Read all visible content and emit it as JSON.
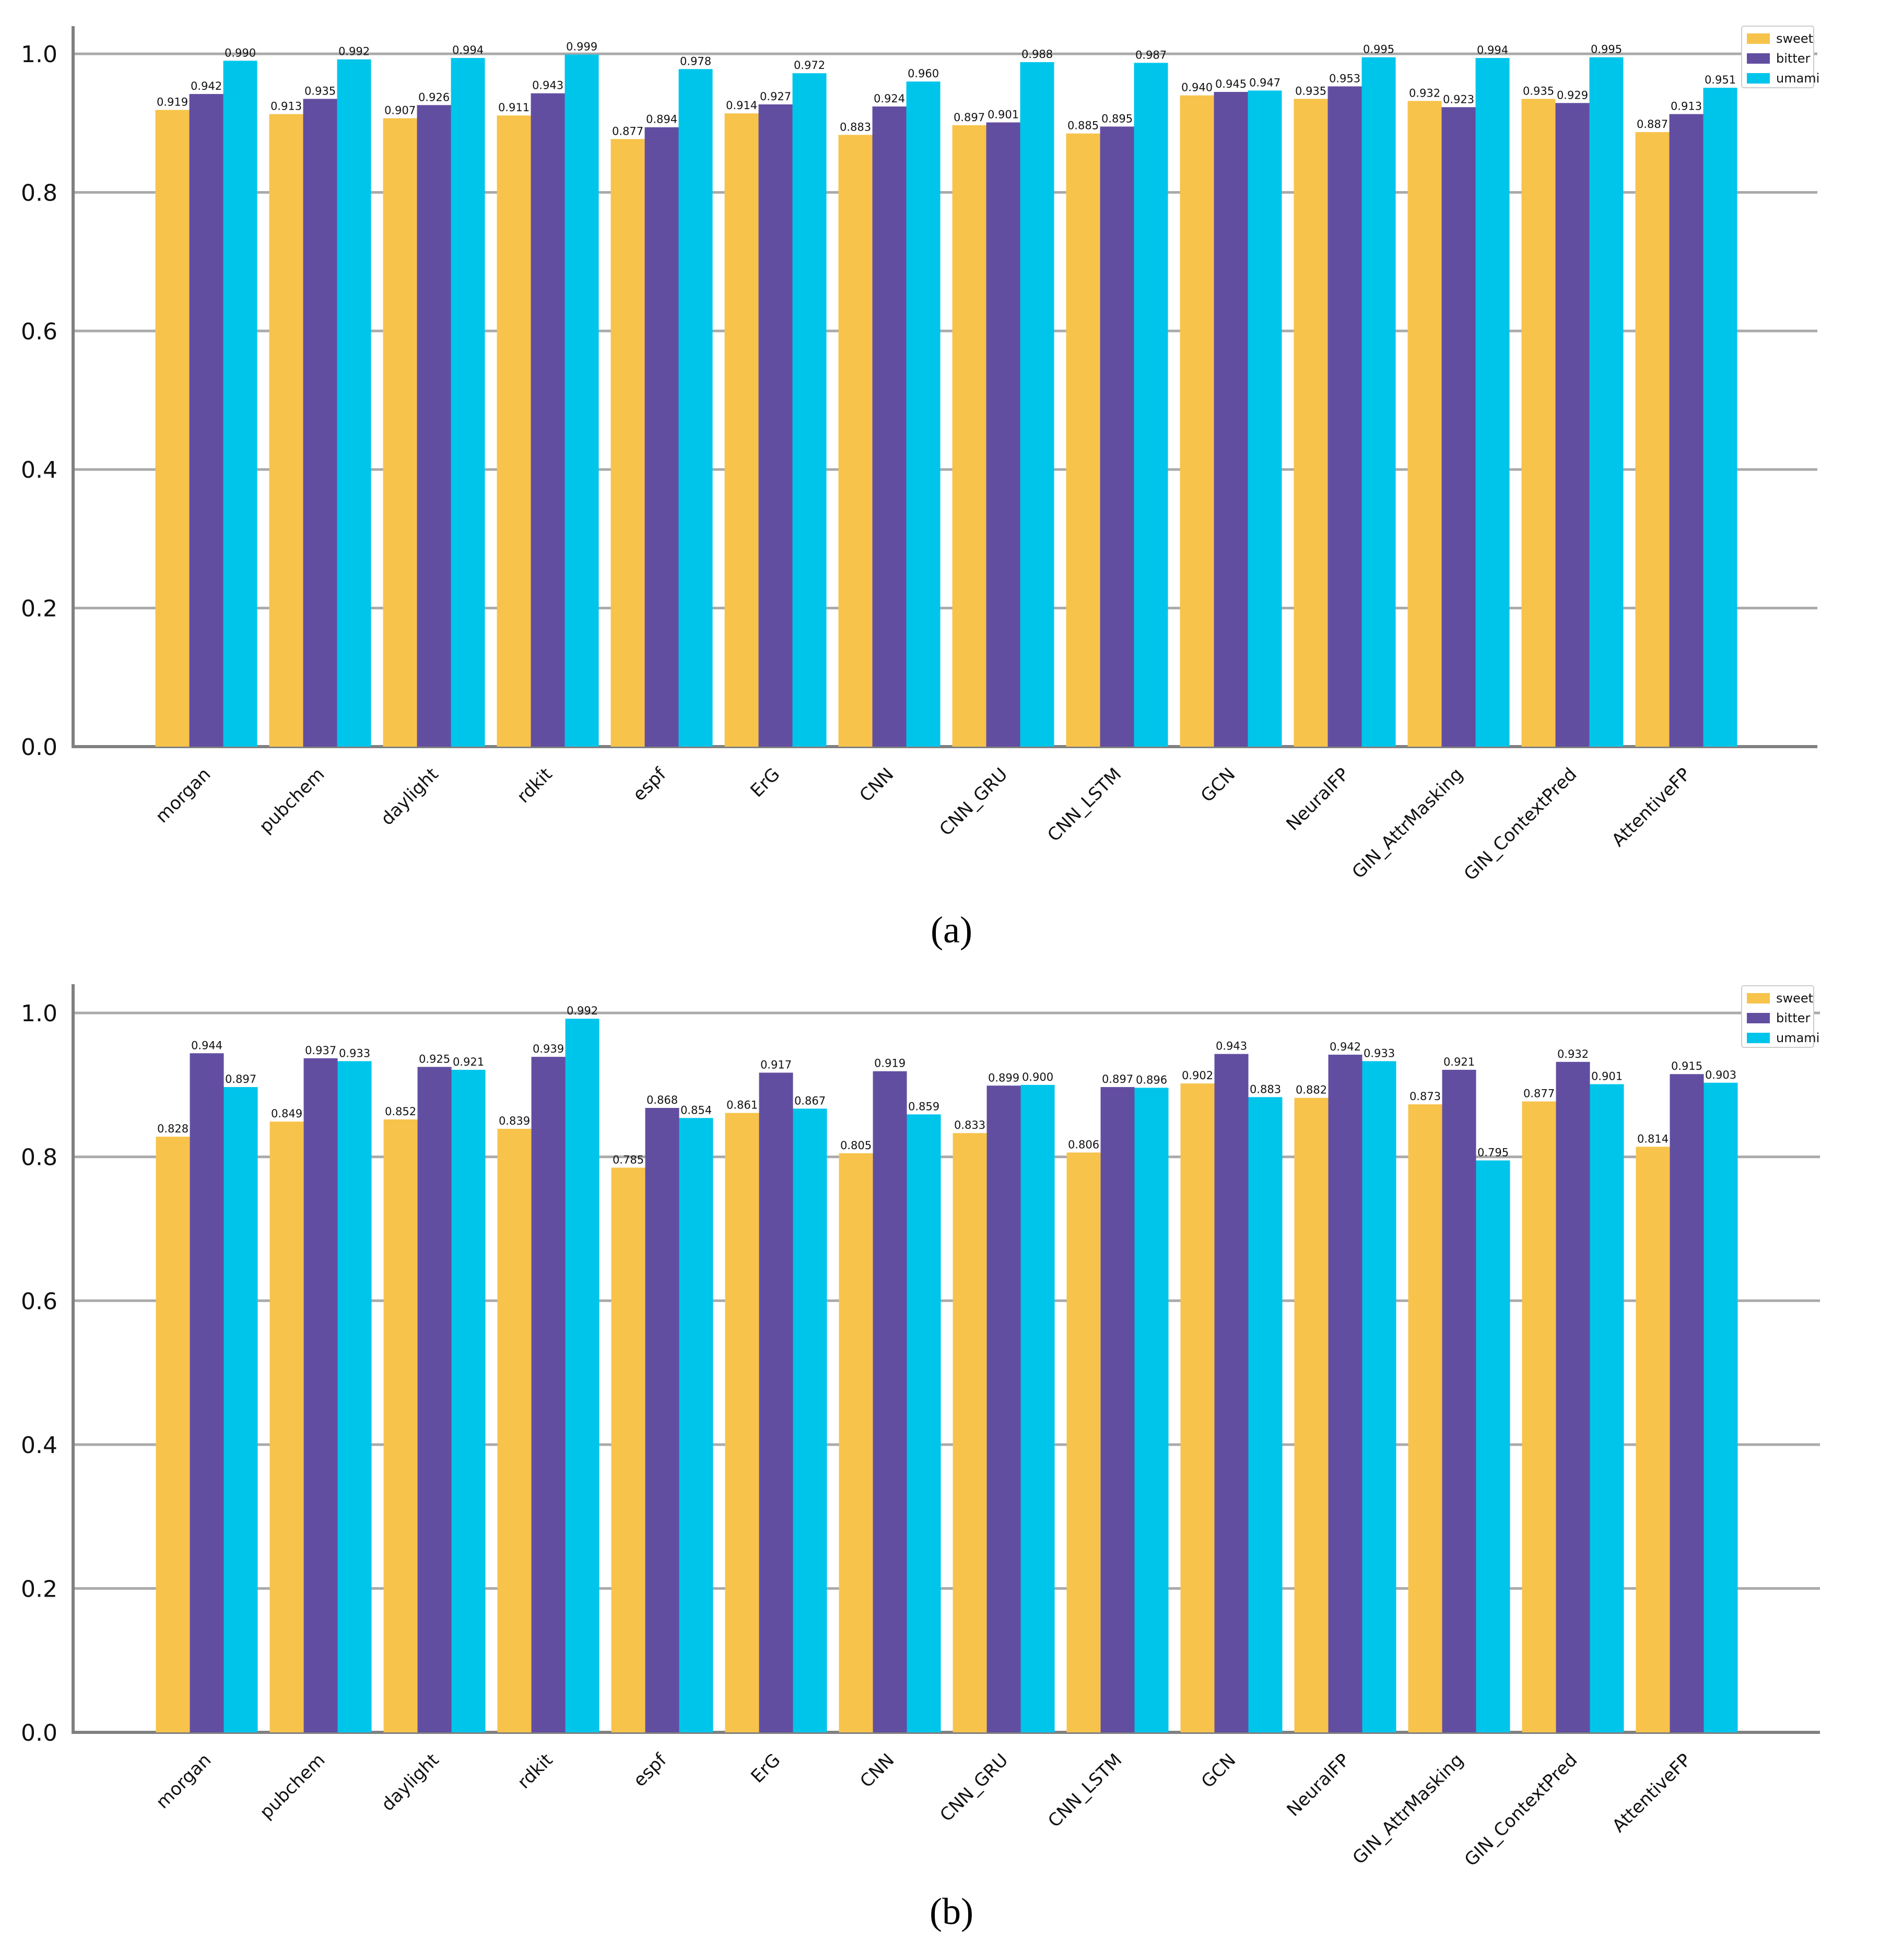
{
  "figure": {
    "panel_labels": [
      "(a)",
      "(b)"
    ]
  },
  "colors": {
    "sweet": "#F7C34B",
    "bitter": "#624EA1",
    "umami": "#00C5EB",
    "grid": "#AAAAAA",
    "axis": "#808080"
  },
  "chart_data": [
    {
      "type": "bar",
      "panel": "(a)",
      "categories": [
        "morgan",
        "pubchem",
        "daylight",
        "rdkit",
        "espf",
        "ErG",
        "CNN",
        "CNN_GRU",
        "CNN_LSTM",
        "GCN",
        "NeuralFP",
        "GIN_AttrMasking",
        "GIN_ContextPred",
        "AttentiveFP"
      ],
      "series": [
        {
          "name": "sweet",
          "values": [
            0.919,
            0.913,
            0.907,
            0.911,
            0.877,
            0.914,
            0.883,
            0.897,
            0.885,
            0.94,
            0.935,
            0.932,
            0.935,
            0.887
          ]
        },
        {
          "name": "bitter",
          "values": [
            0.942,
            0.935,
            0.926,
            0.943,
            0.894,
            0.927,
            0.924,
            0.901,
            0.895,
            0.945,
            0.953,
            0.923,
            0.929,
            0.913
          ]
        },
        {
          "name": "umami",
          "values": [
            0.99,
            0.992,
            0.994,
            0.999,
            0.978,
            0.972,
            0.96,
            0.988,
            0.987,
            0.947,
            0.995,
            0.994,
            0.995,
            0.951
          ]
        }
      ],
      "yticks": [
        "0.0",
        "0.2",
        "0.4",
        "0.6",
        "0.8",
        "1.0"
      ],
      "ylim": [
        0,
        1.04
      ],
      "grid": "horizontal",
      "legend": "top-right"
    },
    {
      "type": "bar",
      "panel": "(b)",
      "categories": [
        "morgan",
        "pubchem",
        "daylight",
        "rdkit",
        "espf",
        "ErG",
        "CNN",
        "CNN_GRU",
        "CNN_LSTM",
        "GCN",
        "NeuralFP",
        "GIN_AttrMasking",
        "GIN_ContextPred",
        "AttentiveFP"
      ],
      "series": [
        {
          "name": "sweet",
          "values": [
            0.828,
            0.849,
            0.852,
            0.839,
            0.785,
            0.861,
            0.805,
            0.833,
            0.806,
            0.902,
            0.882,
            0.873,
            0.877,
            0.814
          ]
        },
        {
          "name": "bitter",
          "values": [
            0.944,
            0.937,
            0.925,
            0.939,
            0.868,
            0.917,
            0.919,
            0.899,
            0.897,
            0.943,
            0.942,
            0.921,
            0.932,
            0.915
          ]
        },
        {
          "name": "umami",
          "values": [
            0.897,
            0.933,
            0.921,
            0.992,
            0.854,
            0.867,
            0.859,
            0.9,
            0.896,
            0.883,
            0.933,
            0.795,
            0.901,
            0.903
          ]
        }
      ],
      "yticks": [
        "0.0",
        "0.2",
        "0.4",
        "0.6",
        "0.8",
        "1.0"
      ],
      "ylim": [
        0,
        1.04
      ],
      "grid": "horizontal",
      "legend": "top-right"
    }
  ]
}
